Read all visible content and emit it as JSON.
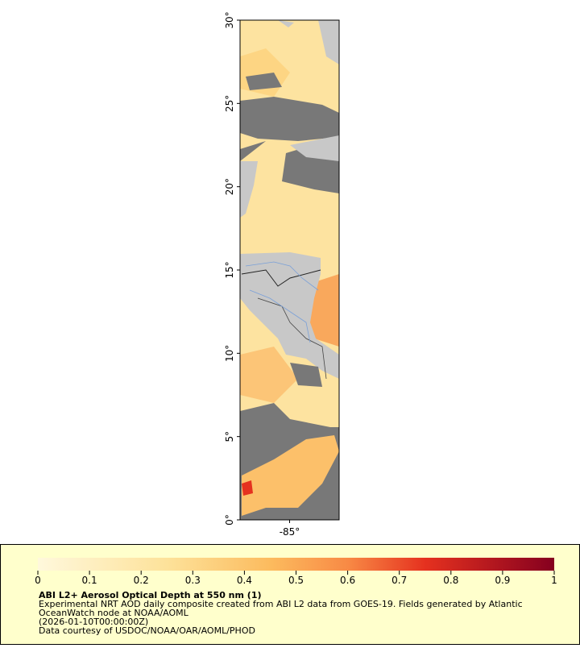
{
  "map": {
    "xlim": [
      -88,
      -82
    ],
    "ylim": [
      0,
      30
    ],
    "xticks": [
      {
        "value": -85,
        "label": "-85°"
      }
    ],
    "yticks": [
      {
        "value": 0,
        "label": "0°"
      },
      {
        "value": 5,
        "label": "5°"
      },
      {
        "value": 10,
        "label": "10°"
      },
      {
        "value": 15,
        "label": "15°"
      },
      {
        "value": 20,
        "label": "20°"
      },
      {
        "value": 25,
        "label": "25°"
      },
      {
        "value": 30,
        "label": "30°"
      }
    ]
  },
  "colorbar": {
    "lim": [
      0,
      1
    ],
    "ticks": [
      0,
      0.1,
      0.2,
      0.3,
      0.4,
      0.5,
      0.6,
      0.7,
      0.8,
      0.9,
      1
    ]
  },
  "legend": {
    "title": "ABI L2+ Aerosol Optical Depth at 550 nm (1)",
    "lines": [
      "Experimental NRT AOD daily composite created from ABI L2 data from GOES-19. Fields generated by Atlantic",
      "OceanWatch node at NOAA/AOML",
      "(2026-01-10T00:00:00Z)",
      "Data courtesy of USDOC/NOAA/OAR/AOML/PHOD"
    ]
  }
}
